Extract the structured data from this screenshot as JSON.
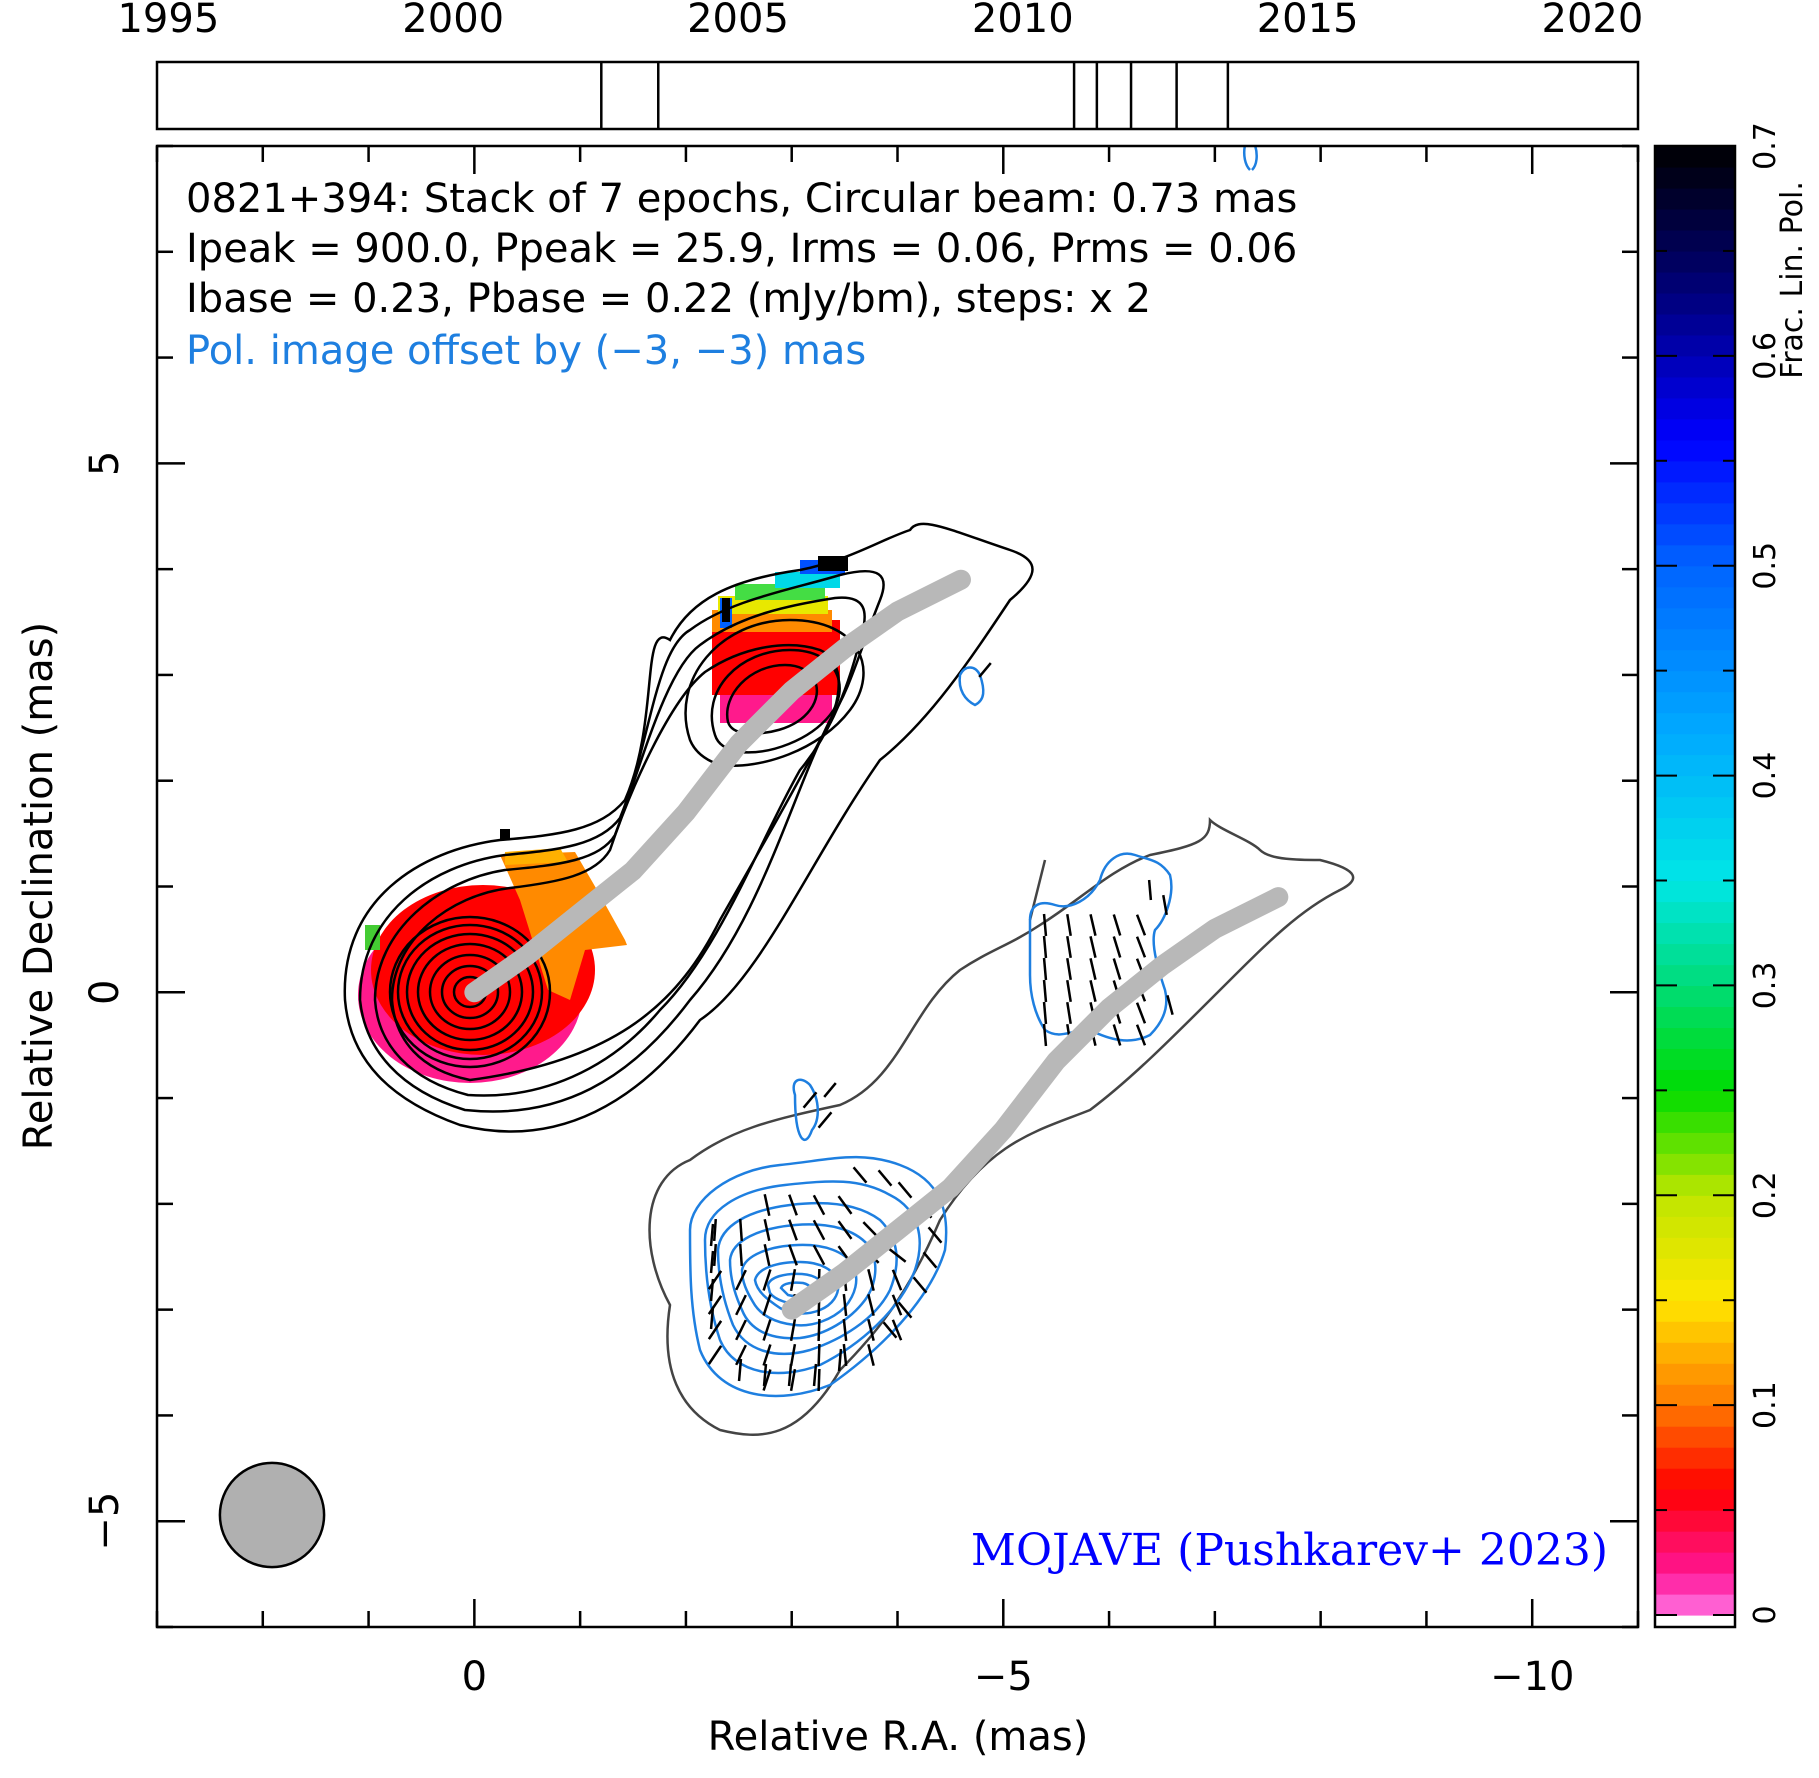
{
  "chart_data": {
    "type": "contour",
    "title_lines": [
      "0821+394: Stack of 7 epochs, Circular beam: 0.73 mas",
      "Ipeak = 900.0, Ppeak = 25.9, Irms = 0.06, Prms = 0.06",
      "Ibase = 0.23, Pbase = 0.22 (mJy/bm), steps: x 2"
    ],
    "pol_note": "Pol. image offset by (−3, −3) mas",
    "credit": "MOJAVE (Pushkarev+ 2023)",
    "xlabel": "Relative R.A. (mas)",
    "ylabel": "Relative Declination (mas)",
    "xlim": [
      3,
      -11
    ],
    "ylim": [
      -6,
      8
    ],
    "xticks": [
      "0",
      "−5",
      "−10"
    ],
    "yticks": [
      "−5",
      "0",
      "5"
    ],
    "timeline": {
      "years": [
        "1995",
        "2000",
        "2005",
        "2010",
        "2015",
        "2020"
      ],
      "range": [
        1994.8,
        2020.8
      ],
      "epochs": [
        2002.6,
        2003.6,
        2010.9,
        2011.3,
        2011.9,
        2012.7,
        2013.6
      ]
    },
    "colorbar": {
      "label": "Frac. Lin. Pol.",
      "ticks": [
        "0",
        "0.1",
        "0.2",
        "0.3",
        "0.4",
        "0.5",
        "0.6",
        "0.7"
      ],
      "range": [
        0,
        0.7
      ]
    },
    "beam_mas": 0.73,
    "ridgeline": [
      [
        0,
        0
      ],
      [
        -0.5,
        0.35
      ],
      [
        -1.0,
        0.75
      ],
      [
        -1.5,
        1.15
      ],
      [
        -2.0,
        1.7
      ],
      [
        -2.5,
        2.35
      ],
      [
        -3.0,
        2.85
      ],
      [
        -3.5,
        3.25
      ],
      [
        -4.0,
        3.6
      ],
      [
        -4.6,
        3.9
      ]
    ],
    "pol_offset": [
      -3,
      -3
    ],
    "colors": {
      "stokes_i_contour": "#000000",
      "total_i_contour": "#444444",
      "pol_contour": "#1e7fe0",
      "ridge": "#b8b8b8",
      "credit": "#0000ff",
      "pol_note": "#1e7fe0"
    }
  }
}
